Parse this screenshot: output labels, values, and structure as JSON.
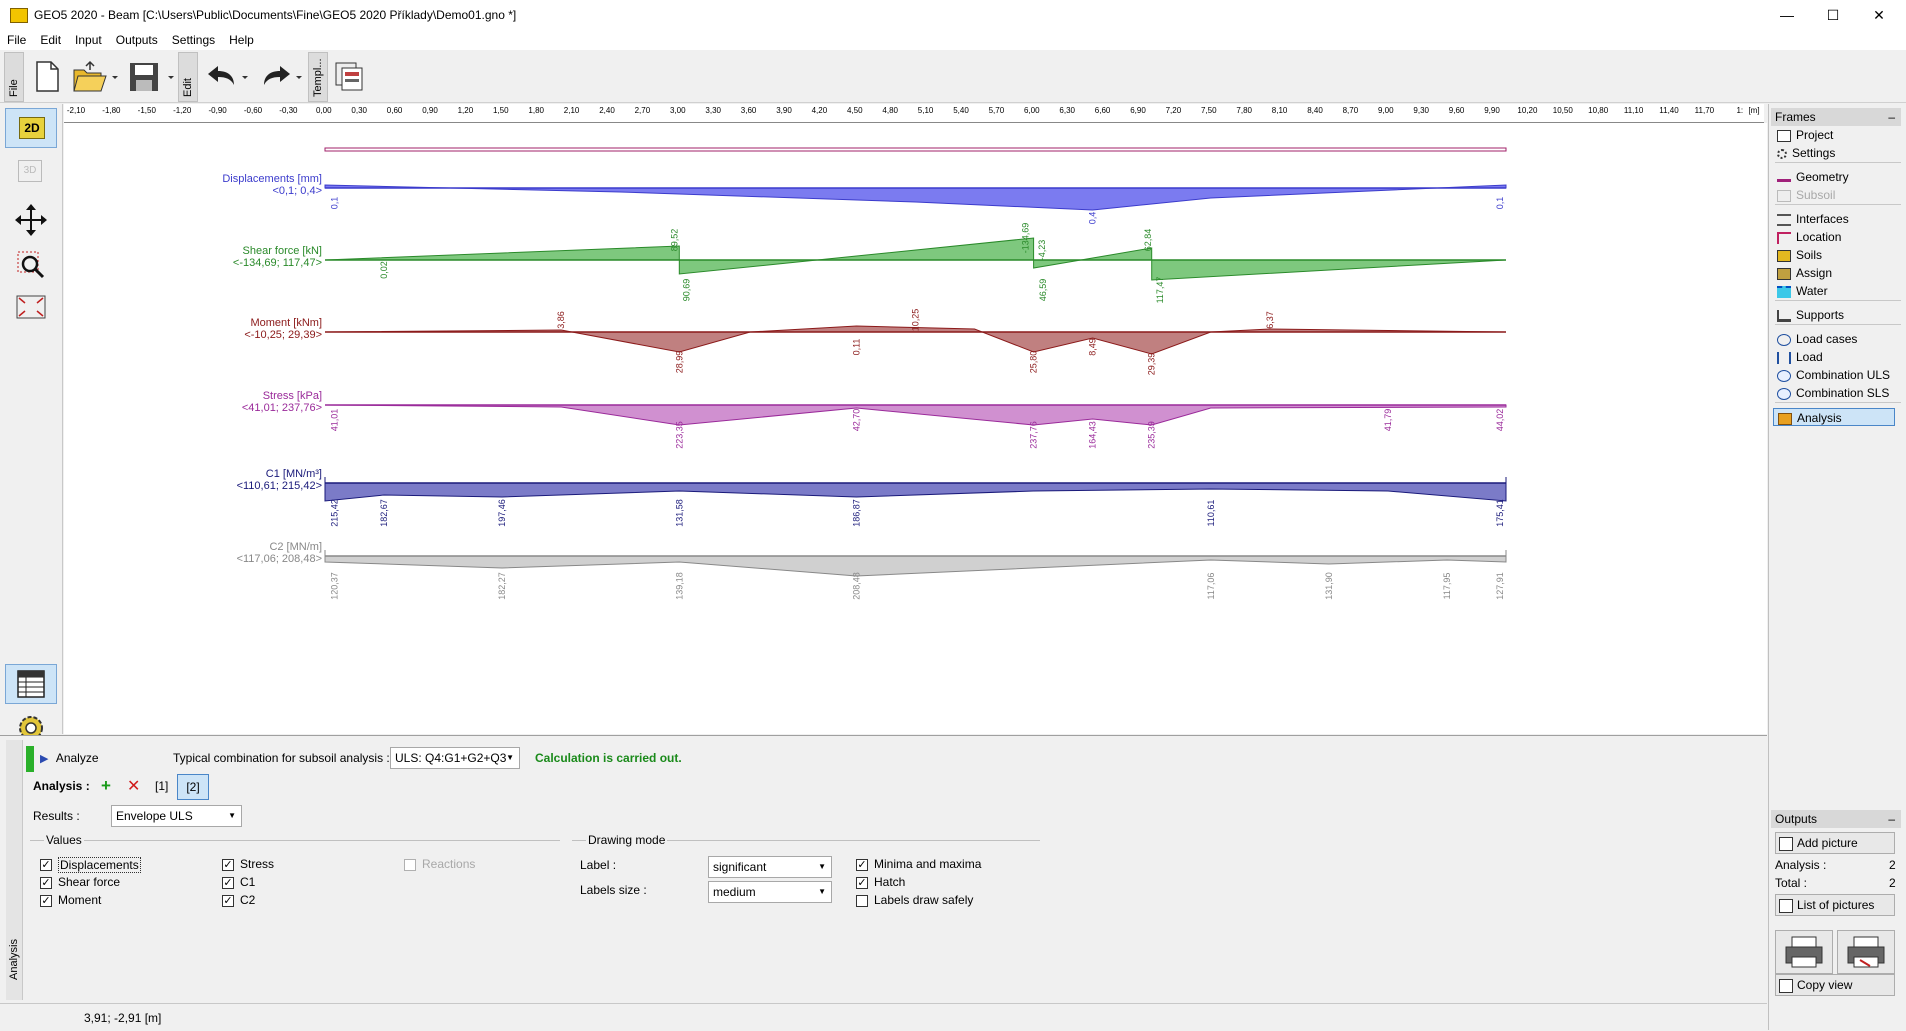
{
  "window": {
    "title": "GEO5 2020 - Beam [C:\\Users\\Public\\Documents\\Fine\\GEO5 2020 Příklady\\Demo01.gno *]"
  },
  "menu": [
    "File",
    "Edit",
    "Input",
    "Outputs",
    "Settings",
    "Help"
  ],
  "toolbar": {
    "file_tab": "File",
    "edit_tab": "Edit",
    "templ_tab": "Templ..."
  },
  "leftbar": {
    "mode_2d": "2D",
    "mode_3d": "3D"
  },
  "ruler": {
    "unit": "[m]",
    "ticks": [
      "-2,10",
      "-1,80",
      "-1,50",
      "-1,20",
      "-0,90",
      "-0,60",
      "-0,30",
      "0,00",
      "0,30",
      "0,60",
      "0,90",
      "1,20",
      "1,50",
      "1,80",
      "2,10",
      "2,40",
      "2,70",
      "3,00",
      "3,30",
      "3,60",
      "3,90",
      "4,20",
      "4,50",
      "4,80",
      "5,10",
      "5,40",
      "5,70",
      "6,00",
      "6,30",
      "6,60",
      "6,90",
      "7,20",
      "7,50",
      "7,80",
      "8,10",
      "8,40",
      "8,70",
      "9,00",
      "9,30",
      "9,60",
      "9,90",
      "10,20",
      "10,50",
      "10,80",
      "11,10",
      "11,40",
      "11,70",
      "1:"
    ]
  },
  "diagrams": {
    "displacements": {
      "title": "Displacements [mm]",
      "range": "<0,1; 0,4>",
      "labels": [
        "0,1",
        "0,4",
        "0,1"
      ],
      "color": "#3b3bcc"
    },
    "shear": {
      "title": "Shear force [kN]",
      "range": "<-134,69; 117,47>",
      "labels": [
        "0,02",
        "89,52",
        "90,69",
        "-134,69",
        "-4,23",
        "46,59",
        "62,84",
        "117,47"
      ],
      "color": "#2a8a2a"
    },
    "moment": {
      "title": "Moment [kNm]",
      "range": "<-10,25; 29,39>",
      "labels": [
        "3,86",
        "28,99",
        "0,11",
        "10,25",
        "25,80",
        "8,49",
        "29,39",
        "6,37"
      ],
      "color": "#8b1a1a"
    },
    "stress": {
      "title": "Stress [kPa]",
      "range": "<41,01; 237,76>",
      "labels": [
        "41,01",
        "223,35",
        "42,70",
        "237,76",
        "164,43",
        "235,39",
        "41,79",
        "44,02"
      ],
      "color": "#9a2a9a"
    },
    "c1": {
      "title": "C1 [MN/m³]",
      "range": "<110,61; 215,42>",
      "labels": [
        "215,42",
        "182,67",
        "197,46",
        "131,58",
        "186,87",
        "110,61",
        "175,41"
      ],
      "color": "#1a1a7a"
    },
    "c2": {
      "title": "C2 [MN/m]",
      "range": "<117,06; 208,48>",
      "labels": [
        "120,37",
        "182,27",
        "139,18",
        "208,48",
        "117,06",
        "131,90",
        "117,95",
        "127,91"
      ],
      "color": "#888888"
    }
  },
  "frames": {
    "header": "Frames",
    "items": [
      {
        "label": "Project",
        "icon": "project-icon",
        "enabled": true
      },
      {
        "label": "Settings",
        "icon": "settings-icon",
        "enabled": true
      },
      {
        "label": "Geometry",
        "icon": "geometry-icon",
        "enabled": true
      },
      {
        "label": "Subsoil",
        "icon": "subsoil-icon",
        "enabled": false
      },
      {
        "label": "Interfaces",
        "icon": "interfaces-icon",
        "enabled": true
      },
      {
        "label": "Location",
        "icon": "location-icon",
        "enabled": true
      },
      {
        "label": "Soils",
        "icon": "soils-icon",
        "enabled": true
      },
      {
        "label": "Assign",
        "icon": "assign-icon",
        "enabled": true
      },
      {
        "label": "Water",
        "icon": "water-icon",
        "enabled": true
      },
      {
        "label": "Supports",
        "icon": "supports-icon",
        "enabled": true
      },
      {
        "label": "Load cases",
        "icon": "load-cases-icon",
        "enabled": true
      },
      {
        "label": "Load",
        "icon": "load-icon",
        "enabled": true
      },
      {
        "label": "Combination ULS",
        "icon": "combination-uls-icon",
        "enabled": true
      },
      {
        "label": "Combination SLS",
        "icon": "combination-sls-icon",
        "enabled": true
      },
      {
        "label": "Analysis",
        "icon": "analysis-icon",
        "enabled": true,
        "active": true
      }
    ]
  },
  "outputs": {
    "header": "Outputs",
    "add_picture": "Add picture",
    "analysis_label": "Analysis :",
    "analysis_count": "2",
    "total_label": "Total :",
    "total_count": "2",
    "list_of_pictures": "List of pictures",
    "copy_view": "Copy view"
  },
  "analysis_panel": {
    "side_tab": "Analysis",
    "analyze_label": "Analyze",
    "combination_label": "Typical combination for subsoil analysis :",
    "combination_value": "ULS: Q4:G1+G2+Q3",
    "status": "Calculation is carried out.",
    "analysis_label": "Analysis :",
    "analysis_tabs": [
      "[1]",
      "[2]"
    ],
    "results_label": "Results :",
    "results_value": "Envelope ULS",
    "values_group": "Values",
    "values": [
      {
        "label": "Displacements",
        "checked": true,
        "enabled": true
      },
      {
        "label": "Shear force",
        "checked": true,
        "enabled": true
      },
      {
        "label": "Moment",
        "checked": true,
        "enabled": true
      },
      {
        "label": "Stress",
        "checked": true,
        "enabled": true
      },
      {
        "label": "C1",
        "checked": true,
        "enabled": true
      },
      {
        "label": "C2",
        "checked": true,
        "enabled": true
      },
      {
        "label": "Reactions",
        "checked": false,
        "enabled": false
      }
    ],
    "drawing_group": "Drawing mode",
    "label_label": "Label :",
    "label_value": "significant",
    "labels_size_label": "Labels size :",
    "labels_size_value": "medium",
    "drawing_options": [
      {
        "label": "Minima and maxima",
        "checked": true
      },
      {
        "label": "Hatch",
        "checked": true
      },
      {
        "label": "Labels draw safely",
        "checked": false
      }
    ]
  },
  "status_bar": {
    "coords": "3,91; -2,91 [m]"
  }
}
